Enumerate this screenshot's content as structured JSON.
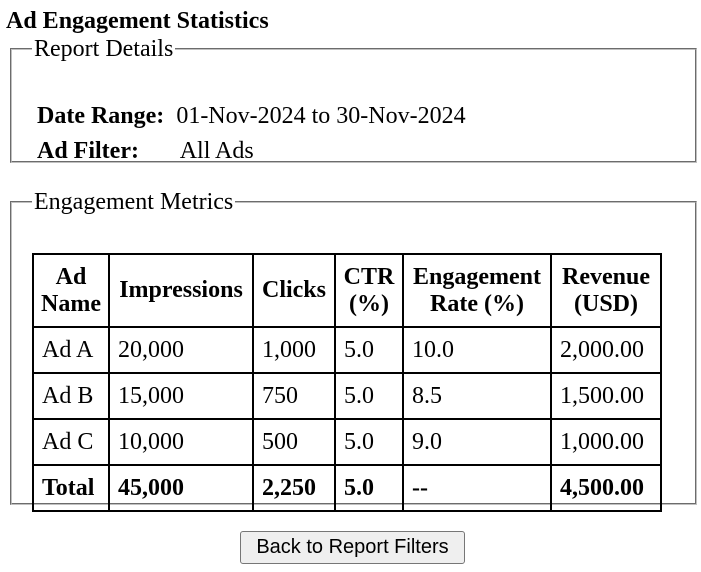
{
  "page_title": "Ad Engagement Statistics",
  "report_details": {
    "legend": "Report Details",
    "date_range_label": "Date Range:",
    "date_range_value": "01-Nov-2024 to 30-Nov-2024",
    "ad_filter_label": "Ad Filter:",
    "ad_filter_value": "All Ads"
  },
  "engagement_metrics": {
    "legend": "Engagement Metrics",
    "headers": {
      "ad_name": "Ad Name",
      "impressions": "Impressions",
      "clicks": "Clicks",
      "ctr": "CTR (%)",
      "engagement_rate": "Engagement Rate (%)",
      "revenue": "Revenue (USD)"
    },
    "rows": [
      {
        "ad_name": "Ad A",
        "impressions": "20,000",
        "clicks": "1,000",
        "ctr": "5.0",
        "engagement_rate": "10.0",
        "revenue": "2,000.00"
      },
      {
        "ad_name": "Ad B",
        "impressions": "15,000",
        "clicks": "750",
        "ctr": "5.0",
        "engagement_rate": "8.5",
        "revenue": "1,500.00"
      },
      {
        "ad_name": "Ad C",
        "impressions": "10,000",
        "clicks": "500",
        "ctr": "5.0",
        "engagement_rate": "9.0",
        "revenue": "1,000.00"
      }
    ],
    "total": {
      "ad_name": "Total",
      "impressions": "45,000",
      "clicks": "2,250",
      "ctr": "5.0",
      "engagement_rate": "--",
      "revenue": "4,500.00"
    }
  },
  "back_button_label": "Back to Report Filters"
}
